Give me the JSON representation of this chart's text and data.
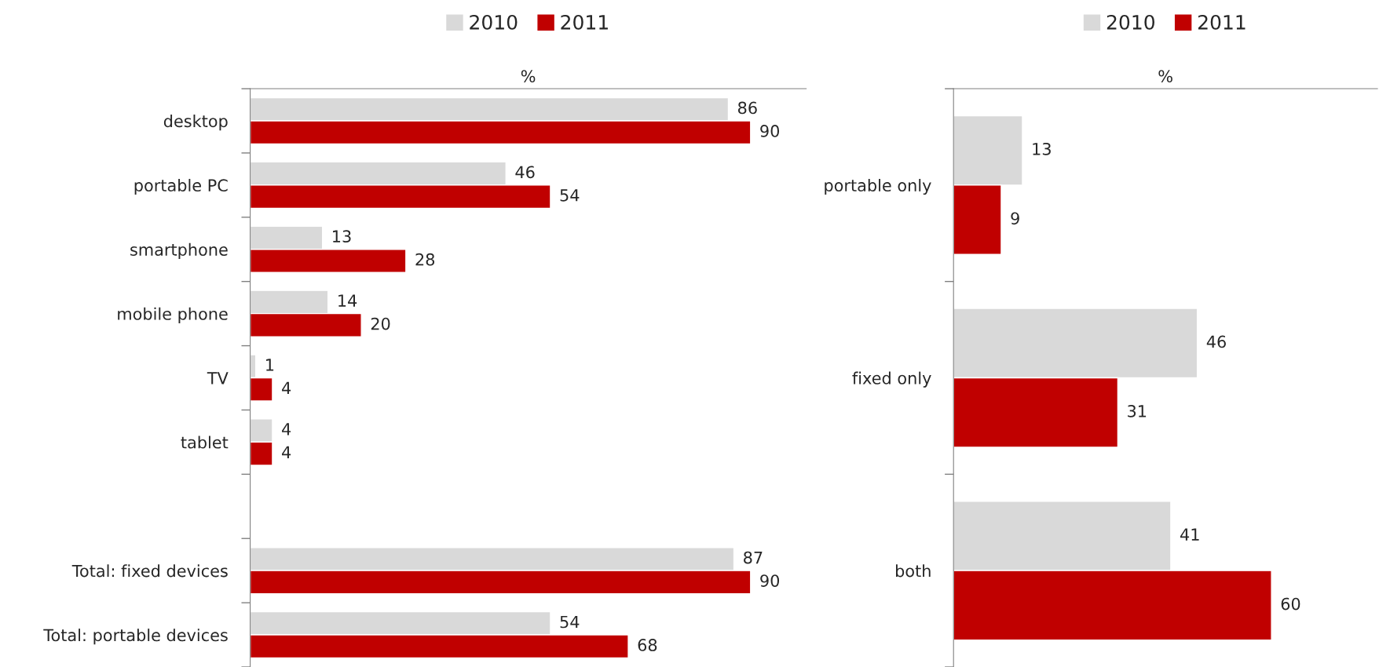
{
  "chart_data": [
    {
      "type": "bar",
      "orientation": "horizontal",
      "xlabel": "%",
      "xlim": [
        0,
        100
      ],
      "data_labels": true,
      "legend": "top",
      "categories": [
        "desktop",
        "portable PC",
        "smartphone",
        "mobile phone",
        "TV",
        "tablet",
        null,
        "Total: fixed devices",
        "Total: portable devices"
      ],
      "series": [
        {
          "name": "2010",
          "color": "#d9d9d9",
          "values": [
            86,
            46,
            13,
            14,
            1,
            4,
            null,
            87,
            54
          ]
        },
        {
          "name": "2011",
          "color": "#c00000",
          "values": [
            90,
            54,
            28,
            20,
            4,
            4,
            null,
            90,
            68
          ]
        }
      ]
    },
    {
      "type": "bar",
      "orientation": "horizontal",
      "xlabel": "%",
      "xlim": [
        0,
        80
      ],
      "data_labels": true,
      "legend": "top",
      "categories": [
        "portable only",
        "fixed only",
        "both"
      ],
      "series": [
        {
          "name": "2010",
          "color": "#d9d9d9",
          "values": [
            13,
            46,
            41
          ]
        },
        {
          "name": "2011",
          "color": "#c00000",
          "values": [
            9,
            31,
            60
          ]
        }
      ]
    }
  ]
}
